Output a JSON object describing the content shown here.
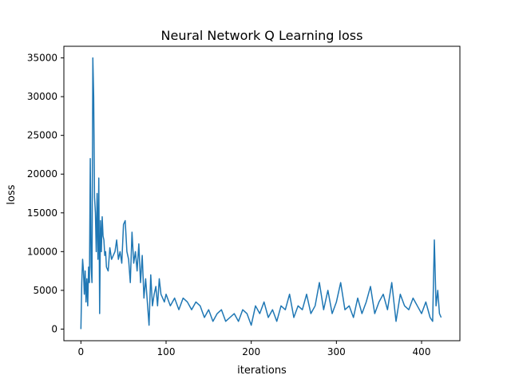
{
  "chart_data": {
    "type": "line",
    "title": "Neural Network Q Learning loss",
    "xlabel": "iterations",
    "ylabel": "loss",
    "xlim": [
      -20,
      445
    ],
    "ylim": [
      -1500,
      36500
    ],
    "xticks": [
      0,
      100,
      200,
      300,
      400
    ],
    "yticks": [
      0,
      5000,
      10000,
      15000,
      20000,
      25000,
      30000,
      35000
    ],
    "xtick_labels": [
      "0",
      "100",
      "200",
      "300",
      "400"
    ],
    "ytick_labels": [
      "0",
      "5000",
      "10000",
      "15000",
      "20000",
      "25000",
      "30000",
      "35000"
    ],
    "grid": false,
    "line_color": "#1f77b4",
    "series": [
      {
        "x": [
          0,
          1,
          2,
          3,
          4,
          5,
          6,
          7,
          8,
          9,
          10,
          11,
          12,
          13,
          14,
          15,
          16,
          17,
          18,
          19,
          20,
          21,
          22,
          23,
          24,
          25,
          26,
          27,
          28,
          29,
          30,
          32,
          34,
          36,
          38,
          40,
          42,
          44,
          46,
          48,
          50,
          52,
          54,
          56,
          58,
          60,
          62,
          64,
          66,
          68,
          70,
          72,
          74,
          76,
          78,
          80,
          82,
          84,
          86,
          88,
          90,
          92,
          94,
          96,
          98,
          100,
          105,
          110,
          115,
          120,
          125,
          130,
          135,
          140,
          145,
          150,
          155,
          160,
          165,
          170,
          175,
          180,
          185,
          190,
          195,
          200,
          205,
          210,
          215,
          220,
          225,
          230,
          235,
          240,
          245,
          250,
          255,
          260,
          265,
          270,
          275,
          280,
          285,
          290,
          295,
          300,
          305,
          310,
          315,
          320,
          325,
          330,
          335,
          340,
          345,
          350,
          355,
          360,
          365,
          370,
          375,
          380,
          385,
          390,
          395,
          400,
          405,
          410,
          413,
          415,
          417,
          419,
          421,
          423
        ],
        "y": [
          0,
          6000,
          9000,
          7500,
          4500,
          7500,
          3500,
          6500,
          3000,
          8000,
          6000,
          22000,
          8000,
          6000,
          35000,
          30000,
          17000,
          15000,
          10000,
          17500,
          9000,
          19500,
          2000,
          14000,
          10000,
          14500,
          12000,
          11500,
          9500,
          10000,
          8000,
          7500,
          10500,
          9000,
          9500,
          10000,
          11500,
          9000,
          10000,
          8500,
          13500,
          14000,
          10000,
          9000,
          6000,
          12500,
          8500,
          10000,
          7500,
          11000,
          6000,
          9500,
          4000,
          6500,
          3500,
          500,
          7000,
          3000,
          4500,
          5500,
          3000,
          6500,
          4500,
          4000,
          3500,
          4500,
          3000,
          4000,
          2500,
          4000,
          3500,
          2500,
          3500,
          3000,
          1500,
          2500,
          1000,
          2000,
          2500,
          1000,
          1500,
          2000,
          1000,
          2500,
          2000,
          500,
          3000,
          2000,
          3500,
          1500,
          2500,
          1000,
          3000,
          2500,
          4500,
          1500,
          3000,
          2500,
          4500,
          2000,
          3000,
          6000,
          2500,
          5000,
          2000,
          3500,
          6000,
          2500,
          3000,
          1500,
          4000,
          2000,
          3500,
          5500,
          2000,
          3500,
          4500,
          2500,
          6000,
          1000,
          4500,
          3000,
          2500,
          4000,
          3000,
          2000,
          3500,
          1500,
          1000,
          11500,
          3000,
          5000,
          2000,
          1500
        ]
      }
    ]
  }
}
